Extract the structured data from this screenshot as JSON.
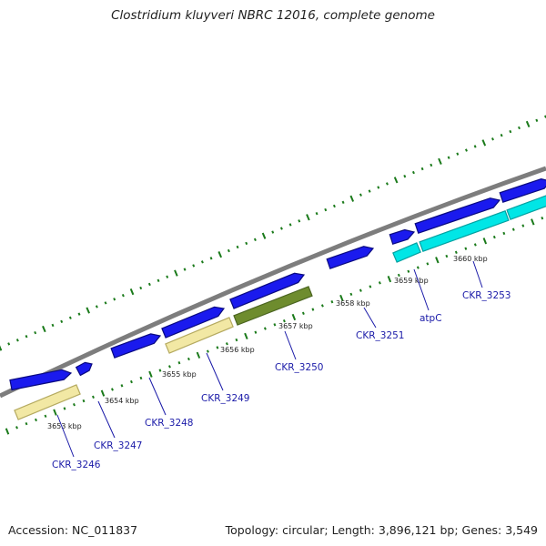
{
  "title": "Clostridium kluyveri NBRC 12016, complete genome",
  "footer": {
    "accession": "Accession: NC_011837",
    "summary": "Topology: circular; Length: 3,896,121 bp; Genes: 3,549"
  },
  "colors": {
    "backbone": "#8c8c8c",
    "forward_gene": "#1a1aee",
    "reverse_gene_default": "#f2e8a4",
    "reverse_gene_cyan": "#00e6e6",
    "reverse_gene_green": "#6e8c2e",
    "tick": "#1a7a1a",
    "label": "#1a1aa8"
  },
  "ticks": [
    {
      "label": "3653 kbp"
    },
    {
      "label": "3654 kbp"
    },
    {
      "label": "3655 kbp"
    },
    {
      "label": "3656 kbp"
    },
    {
      "label": "3657 kbp"
    },
    {
      "label": "3658 kbp"
    },
    {
      "label": "3659 kbp"
    },
    {
      "label": "3660 kbp"
    }
  ],
  "gene_labels": [
    {
      "name": "CKR_3246"
    },
    {
      "name": "CKR_3247"
    },
    {
      "name": "CKR_3248"
    },
    {
      "name": "CKR_3249"
    },
    {
      "name": "CKR_3250"
    },
    {
      "name": "CKR_3251"
    },
    {
      "name": "atpC"
    },
    {
      "name": "CKR_3253"
    }
  ]
}
